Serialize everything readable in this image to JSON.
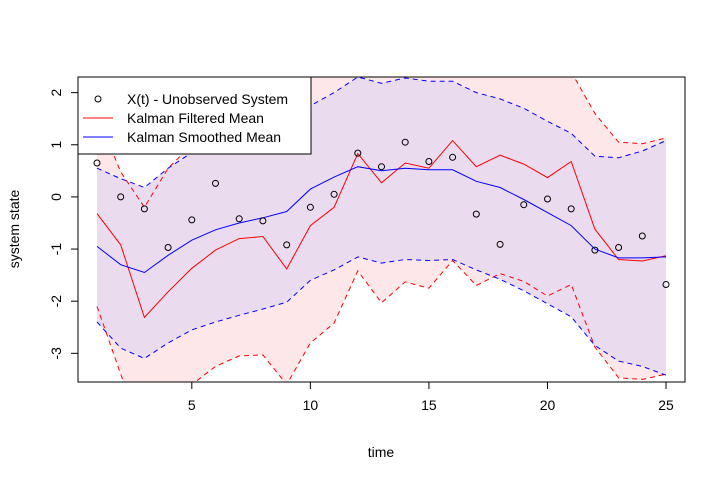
{
  "chart_data": {
    "type": "line",
    "xlabel": "time",
    "ylabel": "system state",
    "xlim": [
      0.2,
      25.8
    ],
    "ylim": [
      -3.55,
      2.3
    ],
    "x_ticks": [
      5,
      10,
      15,
      20,
      25
    ],
    "y_ticks": [
      -3,
      -2,
      -1,
      0,
      1,
      2
    ],
    "grid": false,
    "legend_position": "top-left",
    "legend": [
      {
        "label": "X(t) - Unobserved System",
        "marker": "circle",
        "color": "#000000"
      },
      {
        "label": "Kalman Filtered Mean",
        "marker": "line",
        "color": "#ff0000"
      },
      {
        "label": "Kalman Smoothed Mean",
        "marker": "line",
        "color": "#0000ff"
      }
    ],
    "x": [
      1,
      2,
      3,
      4,
      5,
      6,
      7,
      8,
      9,
      10,
      11,
      12,
      13,
      14,
      15,
      16,
      17,
      18,
      19,
      20,
      21,
      22,
      23,
      24,
      25
    ],
    "observed": [
      0.65,
      0.0,
      -0.23,
      -0.97,
      -0.44,
      0.26,
      -0.42,
      -0.46,
      -0.92,
      -0.2,
      0.05,
      0.84,
      0.58,
      1.05,
      0.68,
      0.76,
      -0.33,
      -0.91,
      -0.15,
      -0.04,
      -0.23,
      -1.02,
      -0.97,
      -0.75,
      -1.68
    ],
    "filtered_mean": [
      -0.32,
      -0.92,
      -2.31,
      -1.82,
      -1.37,
      -1.02,
      -0.8,
      -0.76,
      -1.38,
      -0.55,
      -0.2,
      0.83,
      0.27,
      0.65,
      0.55,
      1.08,
      0.58,
      0.8,
      0.63,
      0.37,
      0.68,
      -0.62,
      -1.2,
      -1.23,
      -1.13
    ],
    "smoothed_mean": [
      -0.95,
      -1.3,
      -1.45,
      -1.12,
      -0.83,
      -0.63,
      -0.5,
      -0.4,
      -0.28,
      0.15,
      0.38,
      0.58,
      0.5,
      0.55,
      0.52,
      0.52,
      0.3,
      0.18,
      -0.05,
      -0.3,
      -0.55,
      -1.0,
      -1.17,
      -1.17,
      -1.15
    ],
    "filtered_upper": [
      1.58,
      0.48,
      -0.2,
      0.55,
      1.0,
      1.55,
      2.4,
      2.4,
      2.4,
      2.4,
      2.4,
      2.4,
      2.4,
      2.4,
      2.4,
      2.4,
      2.4,
      2.4,
      2.4,
      2.4,
      2.4,
      1.6,
      1.05,
      1.02,
      1.13
    ],
    "filtered_lower": [
      -2.1,
      -3.4,
      -4.6,
      -4.0,
      -3.6,
      -3.25,
      -3.05,
      -3.03,
      -3.6,
      -2.8,
      -2.42,
      -1.42,
      -2.03,
      -1.63,
      -1.75,
      -1.22,
      -1.7,
      -1.47,
      -1.62,
      -1.9,
      -1.68,
      -2.88,
      -3.47,
      -3.5,
      -3.4
    ],
    "smoothed_upper": [
      0.55,
      0.35,
      0.18,
      0.55,
      0.85,
      1.05,
      1.18,
      1.28,
      1.42,
      1.75,
      2.0,
      2.3,
      2.18,
      2.28,
      2.22,
      2.22,
      2.0,
      1.88,
      1.7,
      1.45,
      1.22,
      0.78,
      0.75,
      0.88,
      1.08
    ],
    "smoothed_lower": [
      -2.4,
      -2.9,
      -3.1,
      -2.8,
      -2.55,
      -2.4,
      -2.27,
      -2.15,
      -2.02,
      -1.6,
      -1.4,
      -1.15,
      -1.27,
      -1.2,
      -1.22,
      -1.2,
      -1.4,
      -1.58,
      -1.8,
      -2.05,
      -2.3,
      -2.85,
      -3.15,
      -3.25,
      -3.42
    ],
    "colors": {
      "observed": "#000000",
      "filtered": "#ff0000",
      "smoothed": "#0000ff",
      "filtered_band": "#fde7e9",
      "smoothed_band": "#ebdbef",
      "smoothed_only_band": "#e8e8f7"
    }
  }
}
